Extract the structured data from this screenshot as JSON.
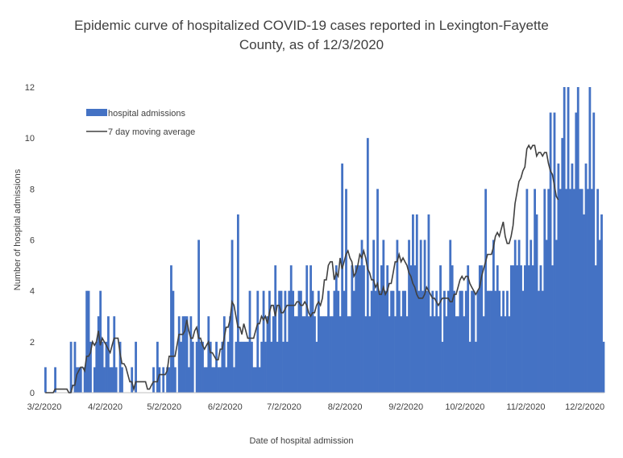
{
  "chart_data": {
    "type": "bar",
    "title_line1": "Epidemic curve of hospitalized COVID-19 cases reported in Lexington-Fayette",
    "title_line2": "County, as of 12/3/2020",
    "xlabel": "Date of hospital admission",
    "ylabel": "Number of hospital admissions",
    "ylim": [
      0,
      12
    ],
    "yticks": [
      "0",
      "2",
      "4",
      "6",
      "8",
      "10",
      "12"
    ],
    "xticks": [
      "3/2/2020",
      "4/2/2020",
      "5/2/2020",
      "6/2/2020",
      "7/2/2020",
      "8/2/2020",
      "9/2/2020",
      "10/2/2020",
      "11/2/2020",
      "12/2/2020"
    ],
    "grid": false,
    "legend_position": "top-left",
    "bar_color": "#4472C4",
    "line_color": "#404040",
    "start_date": "3/2/2020",
    "series": [
      {
        "name": "hospital admissions",
        "kind": "bar",
        "values": [
          1,
          0,
          0,
          0,
          0,
          1,
          0,
          0,
          0,
          0,
          0,
          0,
          0,
          2,
          0,
          2,
          1,
          1,
          1,
          0,
          1,
          4,
          4,
          2,
          0,
          1,
          2,
          3,
          4,
          2,
          1,
          2,
          3,
          1,
          1,
          3,
          1,
          0,
          2,
          1,
          0,
          0,
          0,
          0,
          1,
          0,
          2,
          0,
          0,
          0,
          0,
          0,
          0,
          0,
          0,
          1,
          0,
          2,
          1,
          0,
          1,
          0,
          1,
          1,
          5,
          4,
          1,
          0,
          3,
          2,
          3,
          3,
          3,
          1,
          3,
          2,
          0,
          2,
          6,
          2,
          2,
          1,
          1,
          3,
          2,
          1,
          1,
          2,
          1,
          1,
          2,
          3,
          1,
          2,
          3,
          6,
          1,
          2,
          7,
          2,
          2,
          2,
          2,
          2,
          4,
          2,
          1,
          1,
          4,
          1,
          2,
          4,
          2,
          3,
          4,
          2,
          3,
          5,
          2,
          4,
          4,
          2,
          4,
          2,
          4,
          5,
          4,
          3,
          3,
          4,
          4,
          3,
          3,
          5,
          3,
          5,
          4,
          3,
          2,
          4,
          3,
          3,
          3,
          3,
          4,
          3,
          3,
          4,
          5,
          4,
          3,
          9,
          4,
          8,
          3,
          3,
          5,
          4,
          5,
          5,
          5,
          6,
          5,
          3,
          10,
          3,
          4,
          6,
          4,
          8,
          4,
          5,
          6,
          4,
          5,
          3,
          4,
          4,
          3,
          6,
          4,
          3,
          4,
          4,
          3,
          6,
          5,
          7,
          5,
          7,
          4,
          6,
          4,
          6,
          4,
          7,
          3,
          4,
          3,
          4,
          3,
          5,
          2,
          4,
          3,
          4,
          6,
          5,
          4,
          3,
          3,
          4,
          4,
          3,
          4,
          5,
          2,
          4,
          4,
          2,
          4,
          5,
          5,
          3,
          8,
          4,
          4,
          4,
          6,
          4,
          5,
          4,
          3,
          4,
          3,
          4,
          3,
          5,
          5,
          6,
          5,
          6,
          5,
          4,
          5,
          8,
          5,
          6,
          5,
          8,
          7,
          4,
          5,
          4,
          8,
          6,
          8,
          11,
          5,
          11,
          6,
          9,
          8,
          10,
          12,
          8,
          12,
          8,
          9,
          8,
          11,
          12,
          8,
          8,
          7,
          9,
          8,
          12,
          8,
          11,
          5,
          8,
          6,
          7,
          2
        ]
      },
      {
        "name": "7 day moving average",
        "kind": "line",
        "values": [
          0,
          0,
          0,
          0,
          0,
          0.14,
          0.14,
          0.14,
          0.14,
          0.14,
          0.14,
          0.14,
          0,
          0,
          0.29,
          0.29,
          0.71,
          0.86,
          1,
          1,
          0.86,
          1.43,
          1.43,
          1.57,
          2,
          1.86,
          2,
          2.43,
          1.86,
          2.14,
          2,
          1.86,
          1.71,
          1.57,
          1.86,
          2.14,
          2.14,
          2.14,
          1.57,
          1.14,
          1.14,
          1,
          0.71,
          0.43,
          0.43,
          0.14,
          0.43,
          0.43,
          0.43,
          0.43,
          0.43,
          0.43,
          0.14,
          0.14,
          0.29,
          0.43,
          0.43,
          0.43,
          0.71,
          0.71,
          0.71,
          0.71,
          0.86,
          1.43,
          1.43,
          1.43,
          1.43,
          1.86,
          2.29,
          2.29,
          2.29,
          2.43,
          2.86,
          2.43,
          2.14,
          2.14,
          2.43,
          2.57,
          2.14,
          2.14,
          1.86,
          1.71,
          1.86,
          2,
          1.57,
          1.57,
          1.43,
          1.29,
          1.29,
          1.71,
          1.71,
          2.14,
          2.57,
          2.57,
          2.86,
          3.57,
          3.43,
          3,
          2.57,
          2.57,
          2.29,
          2.71,
          2.43,
          2.14,
          2.14,
          2.14,
          2.14,
          2.43,
          2.71,
          2.71,
          3,
          2.86,
          3,
          2.71,
          3.14,
          3.43,
          3.43,
          3,
          3.43,
          3.43,
          3.14,
          3.14,
          3.29,
          3.43,
          3.43,
          3.43,
          3.43,
          3.43,
          3.57,
          3.57,
          3.43,
          3.43,
          3.57,
          3.43,
          3.14,
          3,
          3.14,
          3.14,
          3.43,
          3.57,
          3.43,
          3.71,
          4.43,
          4.43,
          5,
          5.14,
          5.14,
          4.43,
          4.71,
          4.57,
          5.29,
          4.86,
          5.14,
          5.43,
          5.57,
          5.29,
          5.14,
          4.57,
          4.71,
          5,
          5.43,
          5.29,
          5.57,
          5.29,
          4.86,
          4.71,
          4.43,
          4.43,
          4.14,
          4.29,
          3.86,
          3.86,
          4.14,
          3.86,
          4,
          4.29,
          4.29,
          4.71,
          5.14,
          5.14,
          5.43,
          5.14,
          5.29,
          5.14,
          5,
          4.71,
          4.57,
          4.29,
          4.14,
          3.86,
          3.71,
          3.71,
          3.71,
          3.86,
          4.14,
          4,
          3.86,
          3.71,
          3.71,
          3.57,
          3.43,
          3.57,
          3.71,
          3.71,
          3.71,
          3.71,
          3.57,
          3.57,
          3.86,
          3.86,
          4.14,
          4.43,
          4.57,
          4.43,
          4.57,
          4.57,
          4.29,
          4.14,
          4,
          3.86,
          4,
          4.14,
          4.57,
          4.86,
          5.14,
          5.43,
          5.43,
          5.43,
          5.71,
          6.14,
          6.29,
          6.14,
          6.43,
          6.71,
          6.14,
          5.86,
          5.86,
          6.14,
          6.57,
          7.43,
          7.86,
          8.29,
          8.43,
          8.71,
          8.86,
          9.57,
          9.71,
          9.57,
          9.71,
          9.71,
          9.29,
          9.43,
          9.43,
          9.29,
          9.43,
          9.43,
          9,
          8.71,
          8.57,
          8.14,
          7.71,
          7.57
        ]
      }
    ]
  }
}
